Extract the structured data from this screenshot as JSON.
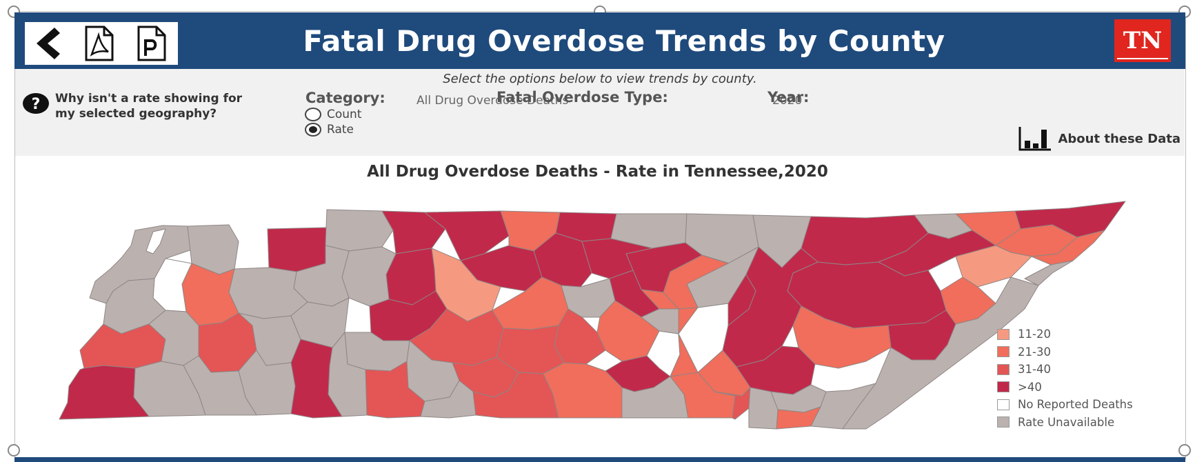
{
  "header": {
    "title": "Fatal Drug Overdose Trends by County",
    "tn_logo": "TN",
    "tools": [
      {
        "name": "back-icon"
      },
      {
        "name": "pdf-icon"
      },
      {
        "name": "powerpoint-icon"
      }
    ],
    "colors": {
      "banner": "#1f4a7c",
      "logo": "#e0261e"
    }
  },
  "controls": {
    "instruction": "Select the options below to view trends by county.",
    "help_text": "Why isn't a rate showing for my selected geography?",
    "category_label": "Category:",
    "radio_options": [
      {
        "label": "Count",
        "selected": false
      },
      {
        "label": "Rate",
        "selected": true
      }
    ],
    "overdose_type_label": "Fatal Overdose Type:",
    "overdose_type_value": "All Drug Overdose Deaths",
    "year_label": "Year:",
    "year_value": "2020",
    "about_label": "About these Data"
  },
  "map": {
    "title": "All Drug Overdose Deaths - Rate in Tennessee,2020",
    "legend": [
      {
        "label": "11-20",
        "color": "#f59a80"
      },
      {
        "label": "21-30",
        "color": "#f06e5b"
      },
      {
        "label": "31-40",
        "color": "#e45555"
      },
      {
        "label": ">40",
        "color": "#c1294a"
      },
      {
        "label": "No Reported Deaths",
        "color": "#ffffff"
      },
      {
        "label": "Rate Unavailable",
        "color": "#bbb2b0"
      }
    ]
  }
}
